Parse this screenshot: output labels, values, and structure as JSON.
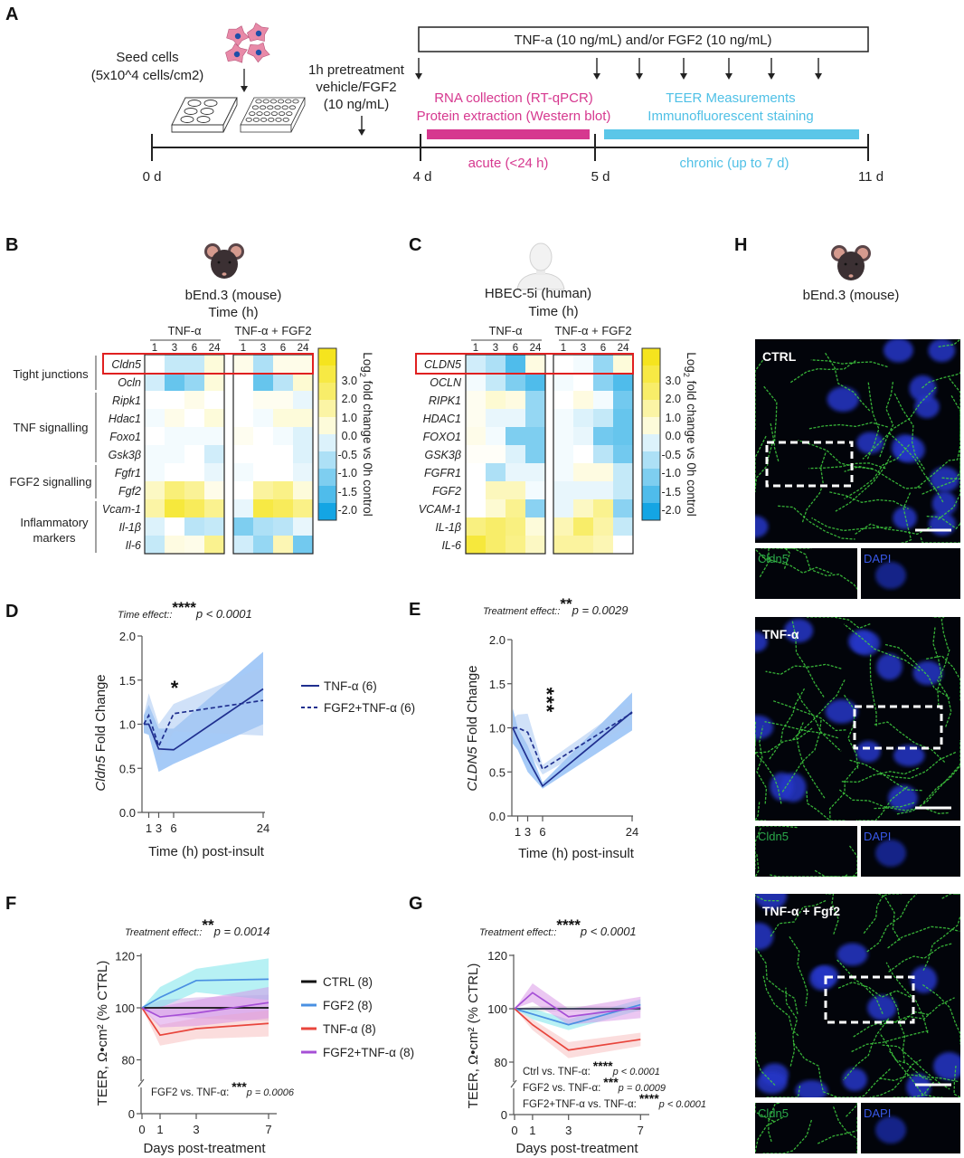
{
  "panel_labels": {
    "A": "A",
    "B": "B",
    "C": "C",
    "D": "D",
    "E": "E",
    "F": "F",
    "G": "G",
    "H": "H"
  },
  "panel_a": {
    "treatment_box": "TNF-a (10 ng/mL) and/or FGF2 (10 ng/mL)",
    "seed_line1": "Seed cells",
    "seed_line2": "(5x10^4 cells/cm2)",
    "pre_line1": "1h pretreatment",
    "pre_line2": "vehicle/FGF2",
    "pre_line3": "(10 ng/mL)",
    "acute_line1": "RNA collection (RT-qPCR)",
    "acute_line2": "Protein extraction (Western blot)",
    "acute_label": "acute (<24 h)",
    "chronic_line1": "TEER Measurements",
    "chronic_line2": "Immunofluorescent staining",
    "chronic_label": "chronic  (up to 7 d)",
    "timepoints": [
      "0 d",
      "4 d",
      "5 d",
      "11 d"
    ],
    "acute_color": "#d6388f",
    "chronic_color": "#5bc6e8"
  },
  "heatmap_b": {
    "cell_line": "bEnd.3 (mouse)",
    "time_label": "Time (h)",
    "group1": "TNF-α",
    "group2": "TNF-α + FGF2",
    "timepoints": [
      "1",
      "3",
      "6",
      "24"
    ],
    "genes": [
      "Cldn5",
      "Ocln",
      "Ripk1",
      "Hdac1",
      "Foxo1",
      "Gsk3β",
      "Fgfr1",
      "Fgf2",
      "Vcam-1",
      "Il-1β",
      "Il-6"
    ],
    "categories": [
      {
        "label": [
          "Tight junctions"
        ]
      },
      {
        "label": [
          "TNF signalling"
        ]
      },
      {
        "label": [
          "FGF2 signalling"
        ]
      },
      {
        "label": [
          "Inflammatory",
          "markers"
        ]
      }
    ],
    "highlighted_gene": "Cldn5",
    "values": [
      [
        0,
        -0.5,
        -0.5,
        0.5,
        0.3,
        -0.7,
        0.3,
        0.3
      ],
      [
        -0.4,
        -1.3,
        -0.9,
        0.5,
        0,
        -1.3,
        -0.6,
        0.6
      ],
      [
        0,
        0,
        0.3,
        0,
        0,
        0.2,
        0.2,
        -0.2
      ],
      [
        -0.1,
        0.3,
        0,
        0.5,
        0,
        -0.1,
        0.5,
        0.5
      ],
      [
        0,
        -0.1,
        -0.1,
        -0.1,
        0.2,
        0,
        -0.1,
        -0.3
      ],
      [
        -0.1,
        -0.1,
        0,
        -0.4,
        0,
        0,
        0,
        -0.3
      ],
      [
        -0.1,
        0,
        0,
        -0.2,
        -0.1,
        0,
        0,
        -0.2
      ],
      [
        0.8,
        1.8,
        1.4,
        0.3,
        0,
        1.3,
        1.6,
        0.5
      ],
      [
        1.2,
        2.6,
        2.2,
        1.5,
        -0.2,
        2.5,
        2.2,
        1.6
      ],
      [
        -0.3,
        0,
        -0.6,
        -0.5,
        -1.1,
        -0.7,
        -0.6,
        -0.2
      ],
      [
        -0.5,
        0.4,
        0.3,
        1.5,
        -0.4,
        -0.9,
        1.0,
        -1.2
      ]
    ]
  },
  "heatmap_c": {
    "cell_line": "HBEC-5i (human)",
    "time_label": "Time (h)",
    "group1": "TNF-α",
    "group2": "TNF-α + FGF2",
    "timepoints": [
      "1",
      "3",
      "6",
      "24"
    ],
    "genes": [
      "CLDN5",
      "OCLN",
      "RIPK1",
      "HDAC1",
      "FOXO1",
      "GSK3β",
      "FGFR1",
      "FGF2",
      "VCAM-1",
      "IL-1β",
      "IL-6"
    ],
    "highlighted_gene": "CLDN5",
    "values": [
      [
        -0.4,
        -0.7,
        -1.5,
        0.4,
        0,
        -0.1,
        -0.9,
        0.5
      ],
      [
        -0.1,
        -0.5,
        -1.1,
        -1.5,
        -0.1,
        0,
        -1.0,
        -1.5
      ],
      [
        0.2,
        0.6,
        0.4,
        -0.9,
        0,
        0.4,
        -0.1,
        -1.2
      ],
      [
        0.2,
        -0.2,
        -0.2,
        -0.9,
        -0.1,
        -0.3,
        -0.5,
        -1.3
      ],
      [
        0.3,
        -0.1,
        -1.1,
        -1.1,
        -0.1,
        -0.2,
        -1.2,
        -1.3
      ],
      [
        0.1,
        0.1,
        -0.3,
        -1.1,
        -0.1,
        0,
        -0.6,
        -1.2
      ],
      [
        0,
        -0.7,
        -0.2,
        -0.2,
        -0.1,
        0.4,
        0.4,
        -0.5
      ],
      [
        0,
        0.9,
        0.9,
        -0.1,
        -0.2,
        -0.2,
        -0.2,
        -0.5
      ],
      [
        0,
        0.6,
        1.5,
        -1.0,
        -0.2,
        0.8,
        1.5,
        -1.0
      ],
      [
        1.7,
        2.0,
        1.7,
        0.5,
        1.0,
        2.0,
        1.2,
        -0.5
      ],
      [
        2.6,
        2.0,
        1.6,
        0.8,
        1.3,
        1.3,
        1.0,
        0
      ]
    ]
  },
  "colorbar": {
    "ticks": [
      "3.0",
      "2.0",
      "1.0",
      "0.0",
      "-0.5",
      "-1.0",
      "-1.5",
      "-2.0"
    ],
    "label_prefix": "Log",
    "label_sub": "2",
    "label_rest": " fold change vs 0h control",
    "high_color": "#f5e41e",
    "low_color": "#14a5e4"
  },
  "panel_h": {
    "cell_line": "bEnd.3 (mouse)",
    "conditions": [
      "CTRL",
      "TNF-α",
      "TNF-α + Fgf2"
    ],
    "inset_green": "Cldn5",
    "inset_blue": "DAPI"
  },
  "chart_data": [
    {
      "panel": "D",
      "type": "line",
      "title": "Time effect::",
      "title_stars": "****",
      "title_p": "p < 0.0001",
      "ylabel_italic": "Cldn5",
      "ylabel_rest": " Fold Change",
      "xlabel": "Time (h) post-insult",
      "x": [
        0,
        1,
        3,
        6,
        24
      ],
      "xticks": [
        "1",
        "3",
        "6",
        "24"
      ],
      "xtick_values": [
        1,
        3,
        6,
        24
      ],
      "yticks": [
        "0.0",
        "0.5",
        "1.0",
        "1.5",
        "2.0"
      ],
      "ylim": [
        0,
        2
      ],
      "annotation": "*",
      "legend": "right",
      "series": [
        {
          "name": "TNF-α (6)",
          "style": "solid",
          "values": [
            1.0,
            1.0,
            0.72,
            0.71,
            1.4
          ],
          "lower": [
            0.9,
            0.88,
            0.46,
            0.55,
            1.0
          ],
          "upper": [
            1.1,
            1.22,
            0.95,
            0.95,
            1.82
          ],
          "color": "#1f2f8f",
          "band": "#5b9ff0"
        },
        {
          "name": "FGF2+TNF-α (6)",
          "style": "dashed",
          "values": [
            1.0,
            1.1,
            0.75,
            1.12,
            1.27
          ],
          "lower": [
            0.9,
            0.92,
            0.6,
            0.92,
            0.87
          ],
          "upper": [
            1.1,
            1.35,
            1.0,
            1.23,
            1.65
          ],
          "color": "#1f2f8f",
          "band": "#a9c8f2"
        }
      ]
    },
    {
      "panel": "E",
      "type": "line",
      "title": "Treatment effect::",
      "title_stars": "**",
      "title_p": "p = 0.0029",
      "ylabel_italic": "CLDN5",
      "ylabel_rest": " Fold Change",
      "xlabel": "Time (h) post-insult",
      "x": [
        0,
        1,
        3,
        6,
        24
      ],
      "xticks": [
        "1",
        "3",
        "6",
        "24"
      ],
      "xtick_values": [
        1,
        3,
        6,
        24
      ],
      "yticks": [
        "0.0",
        "0.5",
        "1.0",
        "1.5",
        "2.0"
      ],
      "ylim": [
        0,
        2
      ],
      "annotation": "***",
      "series": [
        {
          "name": "TNF-α",
          "style": "solid",
          "values": [
            1.0,
            0.88,
            0.65,
            0.34,
            1.18
          ],
          "lower": [
            0.82,
            0.75,
            0.5,
            0.31,
            0.97
          ],
          "upper": [
            1.22,
            1.0,
            0.8,
            0.38,
            1.4
          ],
          "color": "#1f2f8f",
          "band": "#5b9ff0"
        },
        {
          "name": "FGF2+TNF-α",
          "style": "dashed",
          "values": [
            1.0,
            1.0,
            0.95,
            0.53,
            1.17
          ],
          "lower": [
            0.9,
            0.9,
            0.75,
            0.47,
            1.05
          ],
          "upper": [
            1.1,
            1.15,
            1.16,
            0.58,
            1.3
          ],
          "color": "#1f2f8f",
          "band": "#a9c8f2"
        }
      ]
    },
    {
      "panel": "F",
      "type": "line",
      "title": "Treatment effect::",
      "title_stars": "**",
      "title_p": "p = 0.0014",
      "ylabel": "TEER, Ω•cm² (% CTRL)",
      "xlabel": "Days post-treatment",
      "x": [
        0,
        1,
        3,
        7
      ],
      "xticks": [
        "0",
        "1",
        "3",
        "7"
      ],
      "xtick_values": [
        0,
        1,
        3,
        7
      ],
      "yticks": [
        "0",
        "80",
        "100",
        "120"
      ],
      "ytick_values": [
        0,
        80,
        100,
        120
      ],
      "y_axis_break": true,
      "legend": "right",
      "annotations": [
        {
          "text": "FGF2 vs. TNF-α:",
          "stars": "***",
          "p": "p = 0.0006"
        }
      ],
      "series": [
        {
          "name": "CTRL (8)",
          "values": [
            100,
            100,
            100,
            100
          ],
          "lower": [
            100,
            97,
            96,
            95
          ],
          "upper": [
            100,
            103,
            104,
            105
          ],
          "color": "#111111",
          "band": "#c9a3e6"
        },
        {
          "name": "FGF2 (8)",
          "values": [
            100,
            104,
            110.5,
            111
          ],
          "lower": [
            100,
            100,
            106,
            103
          ],
          "upper": [
            100,
            108,
            115,
            119
          ],
          "color": "#4a90e2",
          "band": "#6fe3ea"
        },
        {
          "name": "TNF-α (8)",
          "values": [
            100,
            89.5,
            92,
            94
          ],
          "lower": [
            100,
            85.5,
            88,
            89
          ],
          "upper": [
            100,
            93.5,
            96,
            99
          ],
          "color": "#e8453c",
          "band": "#f7bcbc"
        },
        {
          "name": "FGF2+TNF-α (8)",
          "values": [
            100,
            96.5,
            98,
            102
          ],
          "lower": [
            100,
            92.5,
            93,
            96
          ],
          "upper": [
            100,
            100.5,
            103,
            108
          ],
          "color": "#a64fd6",
          "band": "#d890e6"
        }
      ]
    },
    {
      "panel": "G",
      "type": "line",
      "title": "Treatment effect::",
      "title_stars": "****",
      "title_p": "p < 0.0001",
      "ylabel": "TEER, Ω•cm² (% CTRL)",
      "xlabel": "Days post-treatment",
      "x": [
        0,
        1,
        3,
        7
      ],
      "xticks": [
        "0",
        "1",
        "3",
        "7"
      ],
      "xtick_values": [
        0,
        1,
        3,
        7
      ],
      "yticks": [
        "0",
        "80",
        "100",
        "120"
      ],
      "ytick_values": [
        0,
        80,
        100,
        120
      ],
      "y_axis_break": true,
      "annotations": [
        {
          "text": "Ctrl vs. TNF-α:",
          "stars": "****",
          "p": "p < 0.0001"
        },
        {
          "text": "FGF2 vs. TNF-α:",
          "stars": "***",
          "p": "p = 0.0009"
        },
        {
          "text": "FGF2+TNF-α vs. TNF-α:",
          "stars": "****",
          "p": "p < 0.0001"
        }
      ],
      "series": [
        {
          "name": "CTRL",
          "values": [
            100,
            100,
            100,
            100
          ],
          "lower": [
            100,
            99,
            99,
            99
          ],
          "upper": [
            100,
            101,
            101,
            101
          ],
          "color": "#333a55",
          "band": "#c9c9c9"
        },
        {
          "name": "FGF2",
          "values": [
            100,
            98,
            94,
            101.5
          ],
          "lower": [
            100,
            96,
            92,
            99.5
          ],
          "upper": [
            100,
            100,
            96,
            103.5
          ],
          "color": "#4a90e2",
          "band": "#6fe3ea"
        },
        {
          "name": "TNF-α",
          "values": [
            100,
            94,
            84.5,
            88.5
          ],
          "lower": [
            100,
            92,
            81.5,
            86
          ],
          "upper": [
            100,
            96,
            87.5,
            91
          ],
          "color": "#e8453c",
          "band": "#f7bcbc"
        },
        {
          "name": "FGF2+TNF-α",
          "values": [
            100,
            106,
            97,
            100.5
          ],
          "lower": [
            100,
            102.5,
            94,
            96.5
          ],
          "upper": [
            100,
            109.5,
            100,
            104.5
          ],
          "color": "#a64fd6",
          "band": "#d890e6"
        }
      ]
    }
  ]
}
